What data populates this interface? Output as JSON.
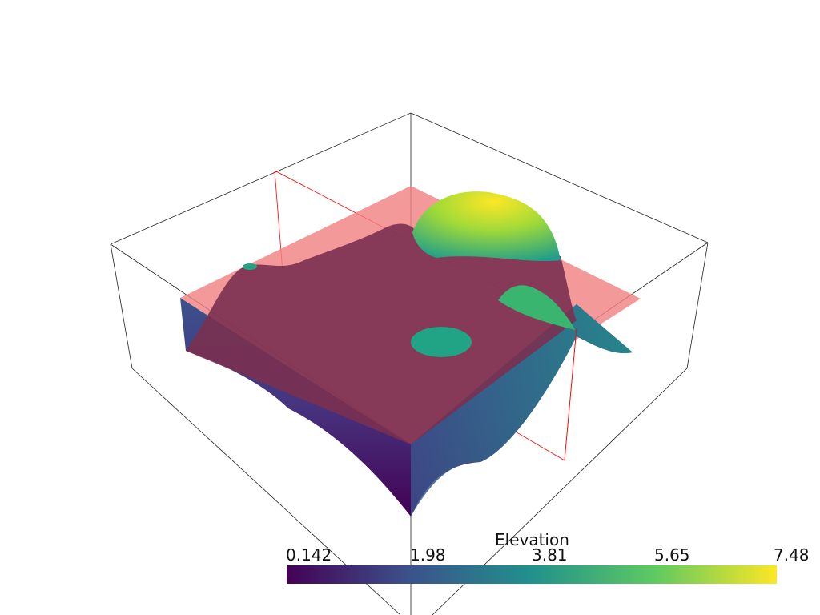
{
  "chart_data": {
    "type": "surface",
    "title": "",
    "scalar_bar": {
      "title": "Elevation",
      "range": [
        0.142,
        7.48
      ],
      "tick_labels": [
        "0.142",
        "1.98",
        "3.81",
        "5.65",
        "7.48"
      ],
      "colormap": "viridis",
      "colors": [
        "#440154",
        "#3b528b",
        "#21918c",
        "#5ec962",
        "#fde725"
      ]
    },
    "bounding_box": true,
    "slice_plane_color": "#f08080",
    "slice_outline_color": "#ff0000"
  }
}
